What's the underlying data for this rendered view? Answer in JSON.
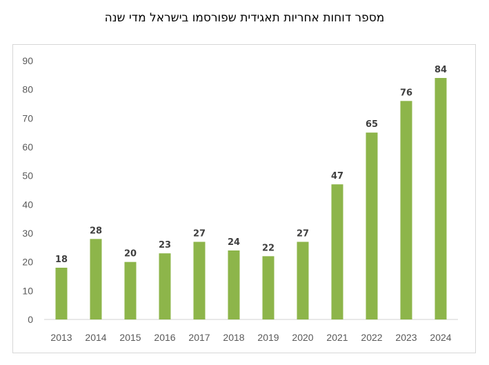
{
  "chart_data": {
    "type": "bar",
    "title": "מספר דוחות אחריות תאגידית שפורסמו בישראל מדי שנה",
    "categories": [
      "2013",
      "2014",
      "2015",
      "2016",
      "2017",
      "2018",
      "2019",
      "2020",
      "2021",
      "2022",
      "2023",
      "2024"
    ],
    "values": [
      18,
      28,
      20,
      23,
      27,
      24,
      22,
      27,
      47,
      65,
      76,
      84
    ],
    "ylim": [
      0,
      90
    ],
    "yticks": [
      0,
      10,
      20,
      30,
      40,
      50,
      60,
      70,
      80,
      90
    ],
    "grid": false,
    "data_labels": true,
    "bar_color": "#8db54a"
  }
}
